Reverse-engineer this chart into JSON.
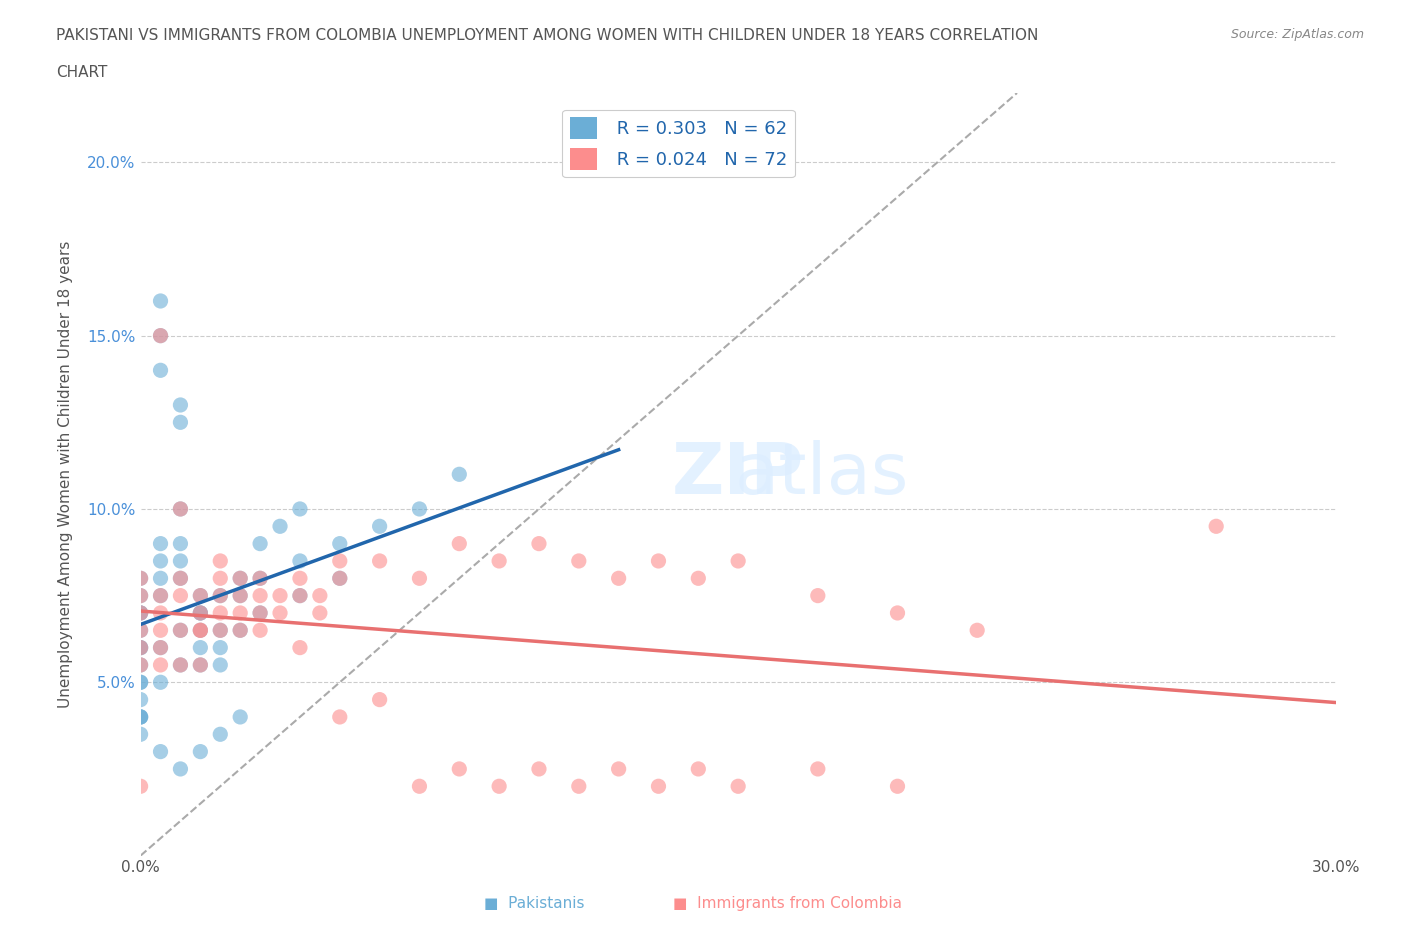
{
  "title_line1": "PAKISTANI VS IMMIGRANTS FROM COLOMBIA UNEMPLOYMENT AMONG WOMEN WITH CHILDREN UNDER 18 YEARS CORRELATION",
  "title_line2": "CHART",
  "source": "Source: ZipAtlas.com",
  "ylabel": "Unemployment Among Women with Children Under 18 years",
  "xlabel": "",
  "xlim": [
    0.0,
    0.3
  ],
  "ylim": [
    0.0,
    0.22
  ],
  "xticks": [
    0.0,
    0.05,
    0.1,
    0.15,
    0.2,
    0.25,
    0.3
  ],
  "xticklabels": [
    "0.0%",
    "",
    "",
    "",
    "",
    "",
    "30.0%"
  ],
  "yticks": [
    0.0,
    0.05,
    0.1,
    0.15,
    0.2
  ],
  "yticklabels": [
    "",
    "5.0%",
    "10.0%",
    "15.0%",
    "20.0%"
  ],
  "legend_r1": "R = 0.303   N = 62",
  "legend_r2": "R = 0.024   N = 72",
  "color_blue": "#6baed6",
  "color_pink": "#fc8d8d",
  "line_blue": "#2166ac",
  "line_pink": "#e87070",
  "line_diag": "#aaaaaa",
  "watermark": "ZIPatlas",
  "pakistani_x": [
    0.0,
    0.0,
    0.0,
    0.0,
    0.0,
    0.0,
    0.0,
    0.0,
    0.0,
    0.0,
    0.005,
    0.005,
    0.005,
    0.005,
    0.005,
    0.005,
    0.005,
    0.01,
    0.01,
    0.01,
    0.01,
    0.01,
    0.01,
    0.015,
    0.015,
    0.015,
    0.015,
    0.015,
    0.02,
    0.02,
    0.02,
    0.025,
    0.025,
    0.03,
    0.03,
    0.04,
    0.04,
    0.05,
    0.05,
    0.06,
    0.07,
    0.08,
    0.0,
    0.0,
    0.0,
    0.005,
    0.005,
    0.01,
    0.01,
    0.015,
    0.02,
    0.025,
    0.0,
    0.0,
    0.005,
    0.01,
    0.015,
    0.02,
    0.025,
    0.03,
    0.035,
    0.04
  ],
  "pakistani_y": [
    0.07,
    0.06,
    0.06,
    0.055,
    0.05,
    0.05,
    0.045,
    0.04,
    0.04,
    0.035,
    0.16,
    0.15,
    0.14,
    0.09,
    0.085,
    0.08,
    0.075,
    0.13,
    0.125,
    0.1,
    0.09,
    0.085,
    0.08,
    0.075,
    0.07,
    0.065,
    0.06,
    0.055,
    0.065,
    0.06,
    0.055,
    0.075,
    0.065,
    0.08,
    0.07,
    0.085,
    0.075,
    0.09,
    0.08,
    0.095,
    0.1,
    0.11,
    0.07,
    0.065,
    0.04,
    0.05,
    0.03,
    0.055,
    0.025,
    0.03,
    0.035,
    0.04,
    0.08,
    0.075,
    0.06,
    0.065,
    0.07,
    0.075,
    0.08,
    0.09,
    0.095,
    0.1
  ],
  "colombia_x": [
    0.0,
    0.0,
    0.0,
    0.0,
    0.0,
    0.0,
    0.005,
    0.005,
    0.005,
    0.005,
    0.005,
    0.01,
    0.01,
    0.01,
    0.01,
    0.015,
    0.015,
    0.015,
    0.015,
    0.02,
    0.02,
    0.02,
    0.02,
    0.025,
    0.025,
    0.025,
    0.03,
    0.03,
    0.03,
    0.035,
    0.035,
    0.04,
    0.04,
    0.045,
    0.045,
    0.05,
    0.05,
    0.06,
    0.07,
    0.08,
    0.09,
    0.1,
    0.11,
    0.12,
    0.13,
    0.14,
    0.15,
    0.17,
    0.19,
    0.21,
    0.005,
    0.01,
    0.015,
    0.02,
    0.025,
    0.03,
    0.04,
    0.05,
    0.06,
    0.07,
    0.08,
    0.09,
    0.1,
    0.11,
    0.12,
    0.13,
    0.14,
    0.15,
    0.17,
    0.19,
    0.27,
    0.0
  ],
  "colombia_y": [
    0.08,
    0.075,
    0.07,
    0.065,
    0.06,
    0.055,
    0.075,
    0.07,
    0.065,
    0.06,
    0.055,
    0.08,
    0.075,
    0.065,
    0.055,
    0.075,
    0.07,
    0.065,
    0.055,
    0.085,
    0.08,
    0.075,
    0.07,
    0.08,
    0.075,
    0.07,
    0.08,
    0.075,
    0.07,
    0.075,
    0.07,
    0.08,
    0.075,
    0.075,
    0.07,
    0.085,
    0.08,
    0.085,
    0.08,
    0.09,
    0.085,
    0.09,
    0.085,
    0.08,
    0.085,
    0.08,
    0.085,
    0.075,
    0.07,
    0.065,
    0.15,
    0.1,
    0.065,
    0.065,
    0.065,
    0.065,
    0.06,
    0.04,
    0.045,
    0.02,
    0.025,
    0.02,
    0.025,
    0.02,
    0.025,
    0.02,
    0.025,
    0.02,
    0.025,
    0.02,
    0.095,
    0.02
  ]
}
